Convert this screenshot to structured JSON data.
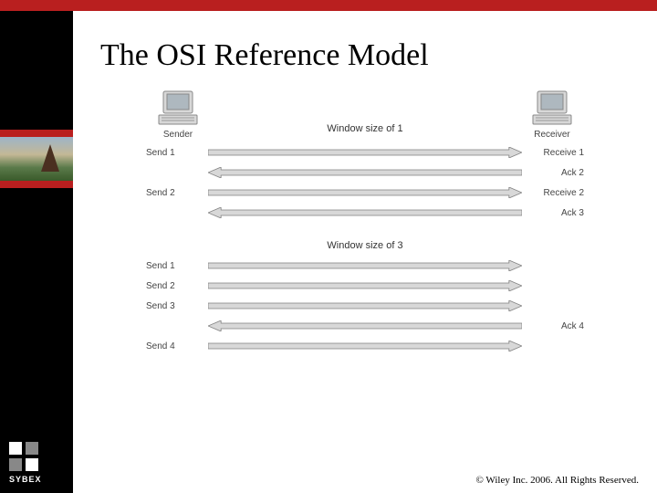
{
  "title": "The OSI Reference Model",
  "copyright": "© Wiley Inc. 2006. All Rights Reserved.",
  "brand": "SYBEX",
  "colors": {
    "accent_red": "#b91f1f",
    "sidebar_bg": "#000000",
    "arrow_fill": "#d8d8d8",
    "arrow_stroke": "#808080",
    "text_gray": "#444444"
  },
  "diagram": {
    "sender_label": "Sender",
    "receiver_label": "Receiver",
    "section1": {
      "heading": "Window size of 1",
      "rows": [
        {
          "left": "Send 1",
          "dir": "right",
          "right": "Receive 1"
        },
        {
          "left": "",
          "dir": "left",
          "right": "Ack 2"
        },
        {
          "left": "Send 2",
          "dir": "right",
          "right": "Receive 2"
        },
        {
          "left": "",
          "dir": "left",
          "right": "Ack 3"
        }
      ]
    },
    "section2": {
      "heading": "Window size of 3",
      "rows": [
        {
          "left": "Send 1",
          "dir": "right",
          "right": ""
        },
        {
          "left": "Send 2",
          "dir": "right",
          "right": ""
        },
        {
          "left": "Send 3",
          "dir": "right",
          "right": ""
        },
        {
          "left": "",
          "dir": "left",
          "right": "Ack 4"
        },
        {
          "left": "Send 4",
          "dir": "right",
          "right": ""
        }
      ]
    }
  },
  "sidebar": {
    "blocks": [
      {
        "type": "spacer",
        "height": 130
      },
      {
        "type": "red"
      },
      {
        "type": "photo"
      },
      {
        "type": "red"
      }
    ]
  }
}
